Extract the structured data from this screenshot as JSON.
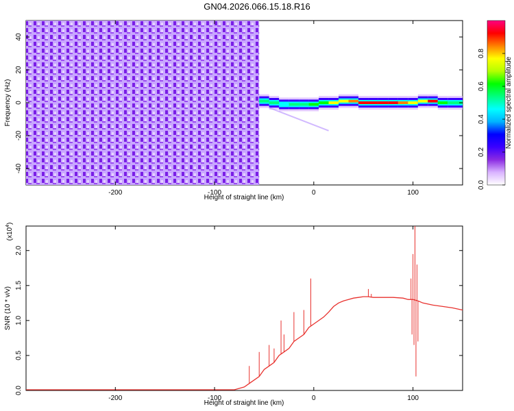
{
  "figure_title": "GN04.2026.066.15.18.R16",
  "chart_data": [
    {
      "type": "heatmap",
      "xlabel": "Height of straight line (km)",
      "ylabel": "Frequency (Hz)",
      "xlim": [
        -290,
        150
      ],
      "ylim": [
        -50,
        50
      ],
      "xticks": [
        -200,
        -100,
        0,
        100
      ],
      "yticks": [
        -40,
        -20,
        0,
        20,
        40
      ],
      "noise_region_x": [
        -290,
        -55
      ],
      "signal_track": {
        "x": [
          -55,
          -45,
          -35,
          -25,
          -15,
          -5,
          5,
          15,
          25,
          35,
          45,
          55,
          65,
          75,
          85,
          95,
          105,
          115,
          125,
          135,
          150
        ],
        "freq": [
          1,
          0,
          -1,
          -1,
          -1,
          -1,
          0,
          0,
          1,
          1,
          0,
          0,
          0,
          0,
          0,
          0,
          1,
          1,
          0,
          0,
          0
        ],
        "amplitude": [
          0.55,
          0.5,
          0.45,
          0.5,
          0.55,
          0.6,
          0.65,
          0.75,
          0.8,
          0.85,
          0.9,
          0.95,
          0.95,
          0.9,
          0.85,
          0.75,
          0.8,
          0.9,
          0.6,
          0.55,
          0.5
        ]
      },
      "colorbar": {
        "label": "Normalized spectral amplitude",
        "range": [
          0,
          1
        ],
        "ticks": [
          "0.0",
          "0.2",
          "0.4",
          "0.6",
          "0.8"
        ],
        "colors": [
          "#ffffff",
          "#d9b3ff",
          "#8a2be2",
          "#3a00ff",
          "#0000ff",
          "#00b4ff",
          "#00ffff",
          "#00ff80",
          "#00ff00",
          "#b4ff00",
          "#ffff00",
          "#ff8000",
          "#ff0000",
          "#ff0080"
        ]
      }
    },
    {
      "type": "line",
      "xlabel": "Height of straight line (km)",
      "ylabel": "SNR (10 * v/v)",
      "y_multiplier": "(x10",
      "y_multiplier_exp": "4",
      "y_multiplier_close": ")",
      "xlim": [
        -290,
        150
      ],
      "ylim": [
        0,
        2.35
      ],
      "xticks": [
        -200,
        -100,
        0,
        100
      ],
      "yticks": [
        "0.0",
        "0.5",
        "1.0",
        "1.5",
        "2.0"
      ],
      "color": "#e8302c",
      "x": [
        -290,
        -200,
        -100,
        -80,
        -70,
        -65,
        -60,
        -55,
        -50,
        -45,
        -40,
        -35,
        -30,
        -25,
        -20,
        -15,
        -10,
        -5,
        0,
        5,
        10,
        15,
        20,
        25,
        30,
        35,
        40,
        45,
        50,
        55,
        60,
        70,
        80,
        90,
        95,
        100,
        105,
        110,
        120,
        130,
        140,
        150
      ],
      "y": [
        0.01,
        0.01,
        0.01,
        0.01,
        0.05,
        0.1,
        0.15,
        0.2,
        0.3,
        0.35,
        0.4,
        0.5,
        0.55,
        0.6,
        0.7,
        0.75,
        0.8,
        0.9,
        0.95,
        1.0,
        1.05,
        1.12,
        1.2,
        1.25,
        1.28,
        1.3,
        1.32,
        1.33,
        1.34,
        1.34,
        1.33,
        1.33,
        1.33,
        1.32,
        1.3,
        1.3,
        1.28,
        1.25,
        1.22,
        1.2,
        1.18,
        1.15
      ],
      "spikes": [
        {
          "x": -65,
          "y": 0.35
        },
        {
          "x": -55,
          "y": 0.55
        },
        {
          "x": -45,
          "y": 0.65
        },
        {
          "x": -40,
          "y": 0.6
        },
        {
          "x": -33,
          "y": 1.0
        },
        {
          "x": -30,
          "y": 0.8
        },
        {
          "x": -20,
          "y": 1.12
        },
        {
          "x": -10,
          "y": 1.15
        },
        {
          "x": -3,
          "y": 1.6
        },
        {
          "x": 55,
          "y": 1.45
        },
        {
          "x": 58,
          "y": 1.38
        },
        {
          "x": 98,
          "y": 1.6
        },
        {
          "x": 100,
          "y": 1.95
        },
        {
          "x": 102,
          "y": 2.35
        },
        {
          "x": 104,
          "y": 1.8
        }
      ],
      "dips": [
        {
          "x": 99,
          "y": 0.8
        },
        {
          "x": 101,
          "y": 0.65
        },
        {
          "x": 103,
          "y": 0.2
        },
        {
          "x": 105,
          "y": 0.7
        }
      ]
    }
  ]
}
